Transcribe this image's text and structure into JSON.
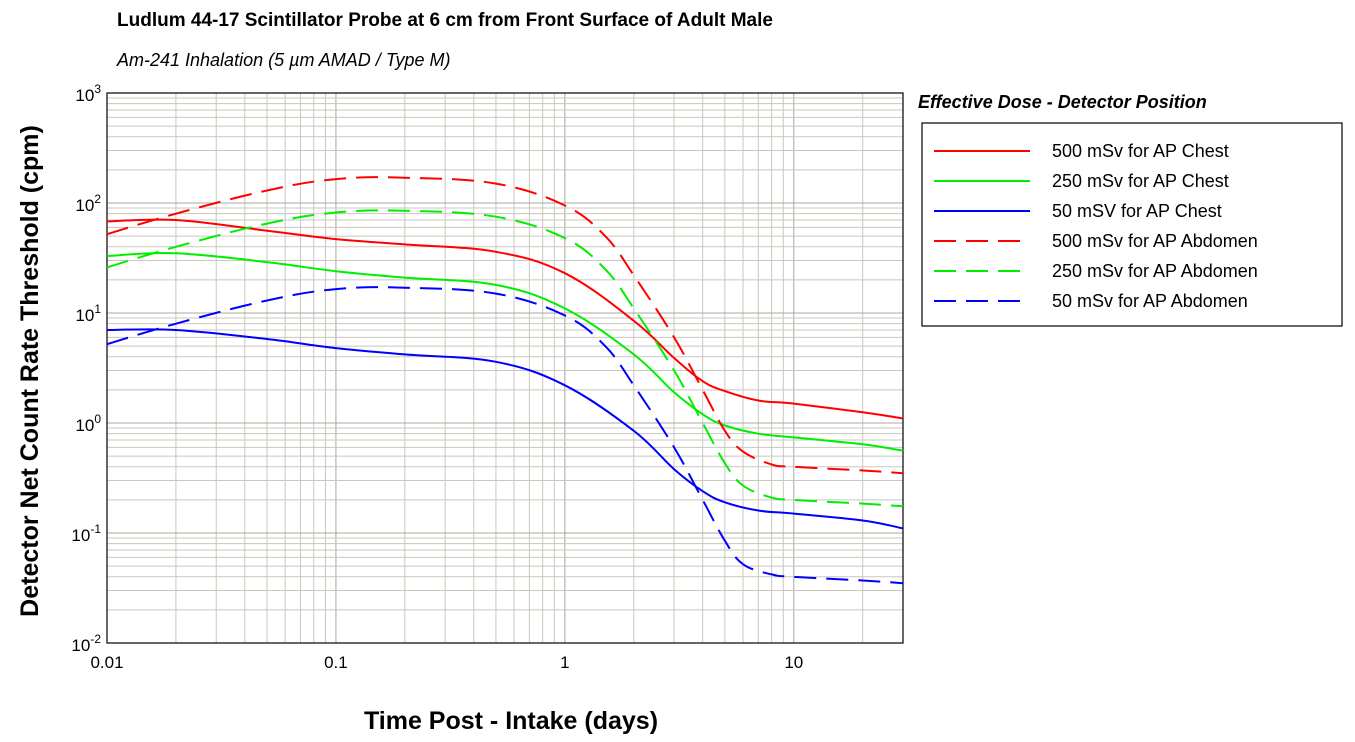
{
  "chart_data": {
    "type": "line",
    "title": "Ludlum 44-17 Scintillator Probe at 6 cm from Front Surface of Adult Male",
    "subtitle": "Am-241 Inhalation (5 µm AMAD / Type M)",
    "xlabel": "Time Post - Intake (days)",
    "ylabel": "Detector Net Count Rate Threshold (cpm)",
    "xscale": "log",
    "yscale": "log",
    "xlim": [
      0.01,
      30
    ],
    "ylim": [
      0.01,
      1000
    ],
    "grid": true,
    "x_ticks": [
      "0.01",
      "0.1",
      "1",
      "10"
    ],
    "y_ticks": [
      {
        "base": "10",
        "exp": "-2"
      },
      {
        "base": "10",
        "exp": "-1"
      },
      {
        "base": "10",
        "exp": "0"
      },
      {
        "base": "10",
        "exp": "1"
      },
      {
        "base": "10",
        "exp": "2"
      },
      {
        "base": "10",
        "exp": "3"
      }
    ],
    "legend": {
      "title": "Effective Dose - Detector Position",
      "placement": "right"
    },
    "series": [
      {
        "name": "500 mSv for AP Chest",
        "color": "#ff0000",
        "dash": "solid",
        "points": [
          [
            0.01,
            68
          ],
          [
            0.02,
            70
          ],
          [
            0.05,
            56
          ],
          [
            0.1,
            47
          ],
          [
            0.2,
            42
          ],
          [
            0.5,
            36
          ],
          [
            1,
            23
          ],
          [
            2,
            8.5
          ],
          [
            3,
            3.9
          ],
          [
            4,
            2.4
          ],
          [
            5,
            1.95
          ],
          [
            7,
            1.6
          ],
          [
            10,
            1.5
          ],
          [
            20,
            1.25
          ],
          [
            30,
            1.1
          ]
        ]
      },
      {
        "name": "250 mSv for AP Chest",
        "color": "#00ee00",
        "dash": "solid",
        "points": [
          [
            0.01,
            33
          ],
          [
            0.02,
            35
          ],
          [
            0.05,
            29
          ],
          [
            0.1,
            24
          ],
          [
            0.2,
            21
          ],
          [
            0.5,
            18
          ],
          [
            1,
            11
          ],
          [
            2,
            4.2
          ],
          [
            3,
            1.9
          ],
          [
            4,
            1.2
          ],
          [
            5,
            0.95
          ],
          [
            7,
            0.8
          ],
          [
            10,
            0.74
          ],
          [
            20,
            0.64
          ],
          [
            30,
            0.56
          ]
        ]
      },
      {
        "name": "50 mSV for AP Chest",
        "color": "#0000ff",
        "dash": "solid",
        "points": [
          [
            0.01,
            7
          ],
          [
            0.02,
            7
          ],
          [
            0.05,
            5.8
          ],
          [
            0.1,
            4.8
          ],
          [
            0.2,
            4.2
          ],
          [
            0.5,
            3.6
          ],
          [
            1,
            2.2
          ],
          [
            2,
            0.85
          ],
          [
            3,
            0.38
          ],
          [
            4,
            0.24
          ],
          [
            5,
            0.19
          ],
          [
            7,
            0.16
          ],
          [
            10,
            0.15
          ],
          [
            20,
            0.13
          ],
          [
            30,
            0.11
          ]
        ]
      },
      {
        "name": "500 mSv for AP Abdomen",
        "color": "#ff0000",
        "dash": "dashed",
        "points": [
          [
            0.01,
            52
          ],
          [
            0.02,
            80
          ],
          [
            0.05,
            130
          ],
          [
            0.1,
            165
          ],
          [
            0.2,
            170
          ],
          [
            0.5,
            150
          ],
          [
            1,
            95
          ],
          [
            1.5,
            50
          ],
          [
            2,
            22
          ],
          [
            3,
            6
          ],
          [
            4,
            2
          ],
          [
            5,
            0.85
          ],
          [
            6,
            0.55
          ],
          [
            8,
            0.42
          ],
          [
            10,
            0.4
          ],
          [
            20,
            0.37
          ],
          [
            30,
            0.35
          ]
        ]
      },
      {
        "name": "250 mSv for AP Abdomen",
        "color": "#00ee00",
        "dash": "dashed",
        "points": [
          [
            0.01,
            26
          ],
          [
            0.02,
            40
          ],
          [
            0.05,
            65
          ],
          [
            0.1,
            82
          ],
          [
            0.2,
            85
          ],
          [
            0.5,
            75
          ],
          [
            1,
            48
          ],
          [
            1.5,
            25
          ],
          [
            2,
            11
          ],
          [
            3,
            3
          ],
          [
            4,
            1
          ],
          [
            5,
            0.43
          ],
          [
            6,
            0.27
          ],
          [
            8,
            0.21
          ],
          [
            10,
            0.2
          ],
          [
            20,
            0.185
          ],
          [
            30,
            0.175
          ]
        ]
      },
      {
        "name": "50 mSv for AP Abdomen",
        "color": "#0000ff",
        "dash": "dashed",
        "points": [
          [
            0.01,
            5.2
          ],
          [
            0.02,
            8
          ],
          [
            0.05,
            13
          ],
          [
            0.1,
            16.5
          ],
          [
            0.2,
            17
          ],
          [
            0.5,
            15
          ],
          [
            1,
            9.5
          ],
          [
            1.5,
            5
          ],
          [
            2,
            2.2
          ],
          [
            3,
            0.6
          ],
          [
            4,
            0.2
          ],
          [
            5,
            0.085
          ],
          [
            6,
            0.052
          ],
          [
            8,
            0.042
          ],
          [
            10,
            0.04
          ],
          [
            20,
            0.037
          ],
          [
            30,
            0.035
          ]
        ]
      }
    ]
  }
}
